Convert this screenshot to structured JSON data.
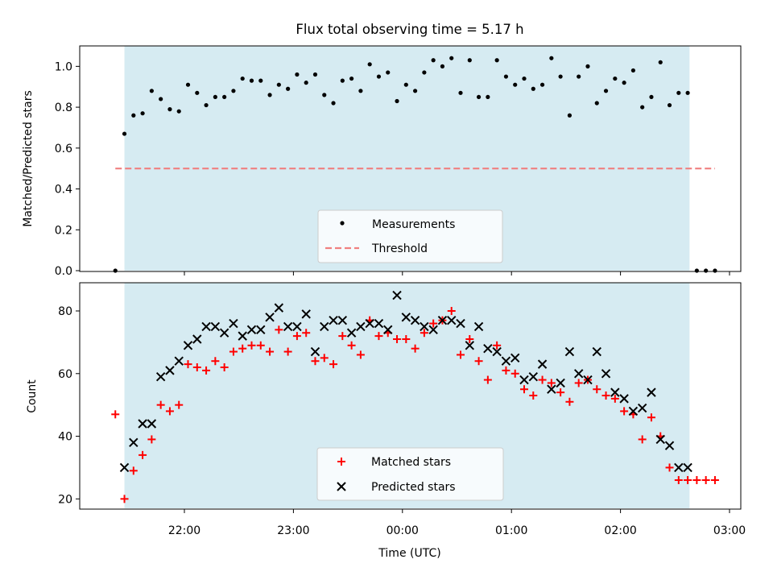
{
  "title": "Flux total observing time = 5.17 h",
  "chart_data": [
    {
      "type": "scatter",
      "panel": "top",
      "ylabel": "Matched/Predicted stars",
      "xlabel": "",
      "ylim": [
        0.0,
        1.1
      ],
      "yticks": [
        "0.0",
        "0.2",
        "0.4",
        "0.6",
        "0.8",
        "1.0"
      ],
      "shaded_span": {
        "start": "21:27",
        "end": "02:38",
        "color": "#add8e6"
      },
      "series": [
        {
          "name": "Measurements",
          "color": "#000000",
          "marker": "dot",
          "x": [
            "21:22",
            "21:27",
            "21:32",
            "21:37",
            "21:42",
            "21:47",
            "21:52",
            "21:57",
            "22:02",
            "22:07",
            "22:12",
            "22:17",
            "22:22",
            "22:27",
            "22:32",
            "22:37",
            "22:42",
            "22:47",
            "22:52",
            "22:57",
            "23:02",
            "23:07",
            "23:12",
            "23:17",
            "23:22",
            "23:27",
            "23:32",
            "23:37",
            "23:42",
            "23:47",
            "23:52",
            "23:57",
            "00:02",
            "00:07",
            "00:12",
            "00:17",
            "00:22",
            "00:27",
            "00:32",
            "00:37",
            "00:42",
            "00:47",
            "00:52",
            "00:57",
            "01:02",
            "01:07",
            "01:12",
            "01:17",
            "01:22",
            "01:27",
            "01:32",
            "01:37",
            "01:42",
            "01:47",
            "01:52",
            "01:57",
            "02:02",
            "02:07",
            "02:12",
            "02:17",
            "02:22",
            "02:27",
            "02:32",
            "02:37",
            "02:42",
            "02:47",
            "02:52"
          ],
          "y": [
            0.0,
            0.67,
            0.76,
            0.77,
            0.88,
            0.84,
            0.79,
            0.78,
            0.91,
            0.87,
            0.81,
            0.85,
            0.85,
            0.88,
            0.94,
            0.93,
            0.93,
            0.86,
            0.91,
            0.89,
            0.96,
            0.92,
            0.96,
            0.86,
            0.82,
            0.93,
            0.94,
            0.88,
            1.01,
            0.95,
            0.97,
            0.83,
            0.91,
            0.88,
            0.97,
            1.03,
            1.0,
            1.04,
            0.87,
            1.03,
            0.85,
            0.85,
            1.03,
            0.95,
            0.91,
            0.94,
            0.89,
            0.91,
            1.04,
            0.95,
            0.76,
            0.95,
            1.0,
            0.82,
            0.88,
            0.94,
            0.92,
            0.98,
            0.8,
            0.85,
            1.02,
            0.81,
            0.87,
            0.87,
            0.0,
            0.0,
            0.0
          ]
        },
        {
          "name": "Threshold",
          "color": "#f08080",
          "line": "dashed",
          "x": [
            "21:22",
            "02:52"
          ],
          "y": [
            0.5,
            0.5
          ]
        }
      ],
      "legend": "lower center"
    },
    {
      "type": "scatter",
      "panel": "bottom",
      "ylabel": "Count",
      "xlabel": "Time (UTC)",
      "ylim": [
        17,
        89
      ],
      "yticks": [
        "20",
        "40",
        "60",
        "80"
      ],
      "xticks": [
        "22:00",
        "23:00",
        "00:00",
        "01:00",
        "02:00",
        "03:00"
      ],
      "shaded_span": {
        "start": "21:27",
        "end": "02:38",
        "color": "#add8e6"
      },
      "series": [
        {
          "name": "Matched stars",
          "color": "#ff0000",
          "marker": "plus",
          "x": [
            "21:22",
            "21:27",
            "21:32",
            "21:37",
            "21:42",
            "21:47",
            "21:52",
            "21:57",
            "22:02",
            "22:07",
            "22:12",
            "22:17",
            "22:22",
            "22:27",
            "22:32",
            "22:37",
            "22:42",
            "22:47",
            "22:52",
            "22:57",
            "23:02",
            "23:07",
            "23:12",
            "23:17",
            "23:22",
            "23:27",
            "23:32",
            "23:37",
            "23:42",
            "23:47",
            "23:52",
            "23:57",
            "00:02",
            "00:07",
            "00:12",
            "00:17",
            "00:22",
            "00:27",
            "00:32",
            "00:37",
            "00:42",
            "00:47",
            "00:52",
            "00:57",
            "01:02",
            "01:07",
            "01:12",
            "01:17",
            "01:22",
            "01:27",
            "01:32",
            "01:37",
            "01:42",
            "01:47",
            "01:52",
            "01:57",
            "02:02",
            "02:07",
            "02:12",
            "02:17",
            "02:22",
            "02:27",
            "02:32",
            "02:37",
            "02:42",
            "02:47",
            "02:52"
          ],
          "y": [
            47,
            20,
            29,
            34,
            39,
            50,
            48,
            50,
            63,
            62,
            61,
            64,
            62,
            67,
            68,
            69,
            69,
            67,
            74,
            67,
            72,
            73,
            64,
            65,
            63,
            72,
            69,
            66,
            77,
            72,
            73,
            71,
            71,
            68,
            73,
            76,
            77,
            80,
            66,
            71,
            64,
            58,
            69,
            61,
            60,
            55,
            53,
            58,
            57,
            54,
            51,
            57,
            58,
            55,
            53,
            52,
            48,
            47,
            39,
            46,
            40,
            30,
            26,
            26,
            26,
            26,
            26
          ]
        },
        {
          "name": "Predicted stars",
          "color": "#000000",
          "marker": "x",
          "x": [
            "21:27",
            "21:32",
            "21:37",
            "21:42",
            "21:47",
            "21:52",
            "21:57",
            "22:02",
            "22:07",
            "22:12",
            "22:17",
            "22:22",
            "22:27",
            "22:32",
            "22:37",
            "22:42",
            "22:47",
            "22:52",
            "22:57",
            "23:02",
            "23:07",
            "23:12",
            "23:17",
            "23:22",
            "23:27",
            "23:32",
            "23:37",
            "23:42",
            "23:47",
            "23:52",
            "23:57",
            "00:02",
            "00:07",
            "00:12",
            "00:17",
            "00:22",
            "00:27",
            "00:32",
            "00:37",
            "00:42",
            "00:47",
            "00:52",
            "00:57",
            "01:02",
            "01:07",
            "01:12",
            "01:17",
            "01:22",
            "01:27",
            "01:32",
            "01:37",
            "01:42",
            "01:47",
            "01:52",
            "01:57",
            "02:02",
            "02:07",
            "02:12",
            "02:17",
            "02:22",
            "02:27",
            "02:32",
            "02:37"
          ],
          "y": [
            30,
            38,
            44,
            44,
            59,
            61,
            64,
            69,
            71,
            75,
            75,
            73,
            76,
            72,
            74,
            74,
            78,
            81,
            75,
            75,
            79,
            67,
            75,
            77,
            77,
            73,
            75,
            76,
            76,
            74,
            85,
            78,
            77,
            75,
            74,
            77,
            77,
            76,
            69,
            75,
            68,
            67,
            64,
            65,
            58,
            59,
            63,
            55,
            57,
            67,
            60,
            58,
            67,
            60,
            54,
            52,
            48,
            49,
            54,
            39,
            37,
            30,
            30
          ]
        }
      ],
      "legend": "lower center"
    }
  ]
}
